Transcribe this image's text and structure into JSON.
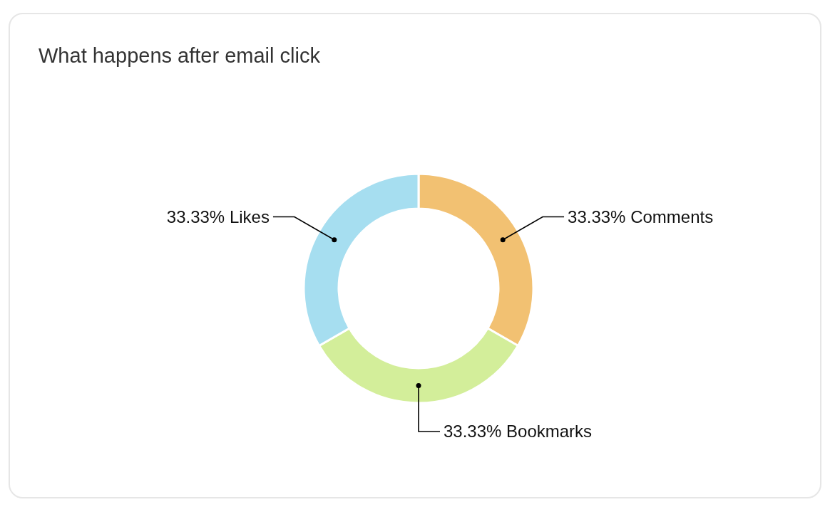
{
  "chart_data": {
    "type": "donut",
    "title": "What happens after email click",
    "categories": [
      "Comments",
      "Bookmarks",
      "Likes"
    ],
    "values": [
      33.33,
      33.33,
      33.33
    ],
    "colors": [
      "#f2c172",
      "#d3ee9a",
      "#a6def0"
    ],
    "value_labels": [
      "33.33%",
      "33.33%",
      "33.33%"
    ]
  }
}
